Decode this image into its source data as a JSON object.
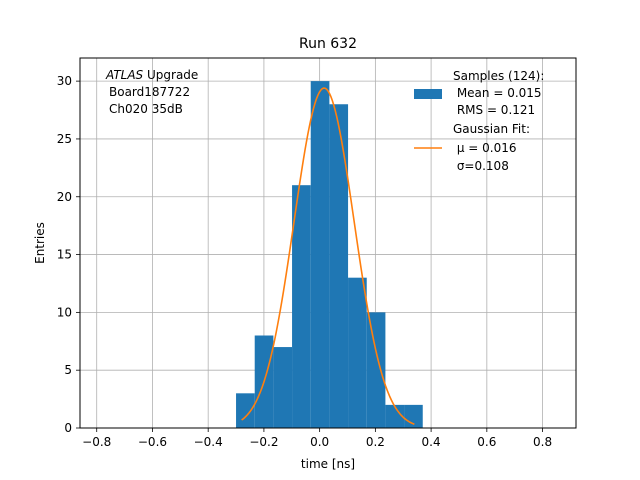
{
  "chart_data": {
    "type": "bar",
    "title": "Run 632",
    "xlabel": "time [ns]",
    "ylabel": "Entries",
    "xlim": [
      -0.86,
      0.92
    ],
    "ylim": [
      0,
      32
    ],
    "grid": true,
    "xticks": [
      -0.8,
      -0.6,
      -0.4,
      -0.2,
      0.0,
      0.2,
      0.4,
      0.6,
      0.8
    ],
    "xtick_labels": [
      "−0.8",
      "−0.6",
      "−0.4",
      "−0.2",
      "0.0",
      "0.2",
      "0.4",
      "0.6",
      "0.8"
    ],
    "yticks": [
      0,
      5,
      10,
      15,
      20,
      25,
      30
    ],
    "ytick_labels": [
      "0",
      "5",
      "10",
      "15",
      "20",
      "25",
      "30"
    ],
    "bin_edges": [
      -0.3,
      -0.233,
      -0.166,
      -0.099,
      -0.032,
      0.035,
      0.102,
      0.169,
      0.236,
      0.303,
      0.37
    ],
    "counts": [
      3,
      8,
      7,
      21,
      30,
      28,
      13,
      10,
      2,
      2
    ],
    "gaussian_fit": {
      "amplitude": 29.4,
      "mu": 0.016,
      "sigma": 0.108,
      "x_range": [
        -0.28,
        0.34
      ]
    },
    "legend_position": "upper right",
    "legend": {
      "hist_lines": [
        "Samples (124):",
        " Mean = 0.015",
        " RMS = 0.121"
      ],
      "fit_lines": [
        "Gaussian Fit:",
        " μ = 0.016",
        " σ=0.108"
      ]
    },
    "annotation": {
      "line1_italic": "ATLAS",
      "line1_rest": " Upgrade",
      "line2": "Board187722",
      "line3": "Ch020 35dB"
    },
    "colors": {
      "hist": "#1f77b4",
      "fit": "#ff7f0e",
      "grid": "#b0b0b0"
    }
  }
}
